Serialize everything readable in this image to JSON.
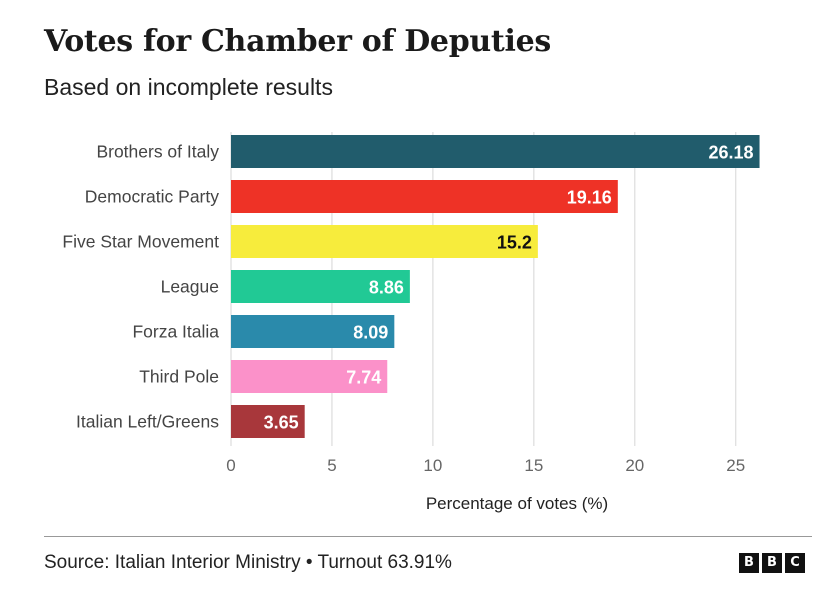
{
  "chart_data": {
    "type": "bar",
    "orientation": "horizontal",
    "title": "Votes for Chamber of Deputies",
    "subtitle": "Based on incomplete results",
    "xlabel": "Percentage of votes (%)",
    "ylabel": "",
    "xlim": [
      0,
      26.5
    ],
    "xticks": [
      0,
      5,
      10,
      15,
      20,
      25
    ],
    "grid": true,
    "categories": [
      "Brothers of Italy",
      "Democratic Party",
      "Five Star Movement",
      "League",
      "Forza Italia",
      "Third Pole",
      "Italian Left/Greens"
    ],
    "values": [
      26.18,
      19.16,
      15.2,
      8.86,
      8.09,
      7.74,
      3.65
    ],
    "value_labels": [
      "26.18",
      "19.16",
      "15.2",
      "8.86",
      "8.09",
      "7.74",
      "3.65"
    ],
    "colors": [
      "#215c6c",
      "#ee3226",
      "#f7ec3c",
      "#21c995",
      "#2a8aab",
      "#fb91c9",
      "#a8373b"
    ],
    "label_colors": [
      "#ffffff",
      "#ffffff",
      "#111111",
      "#ffffff",
      "#ffffff",
      "#ffffff",
      "#ffffff"
    ]
  },
  "footer": {
    "source": "Source: Italian Interior Ministry • Turnout 63.91%",
    "logo": [
      "B",
      "B",
      "C"
    ]
  }
}
